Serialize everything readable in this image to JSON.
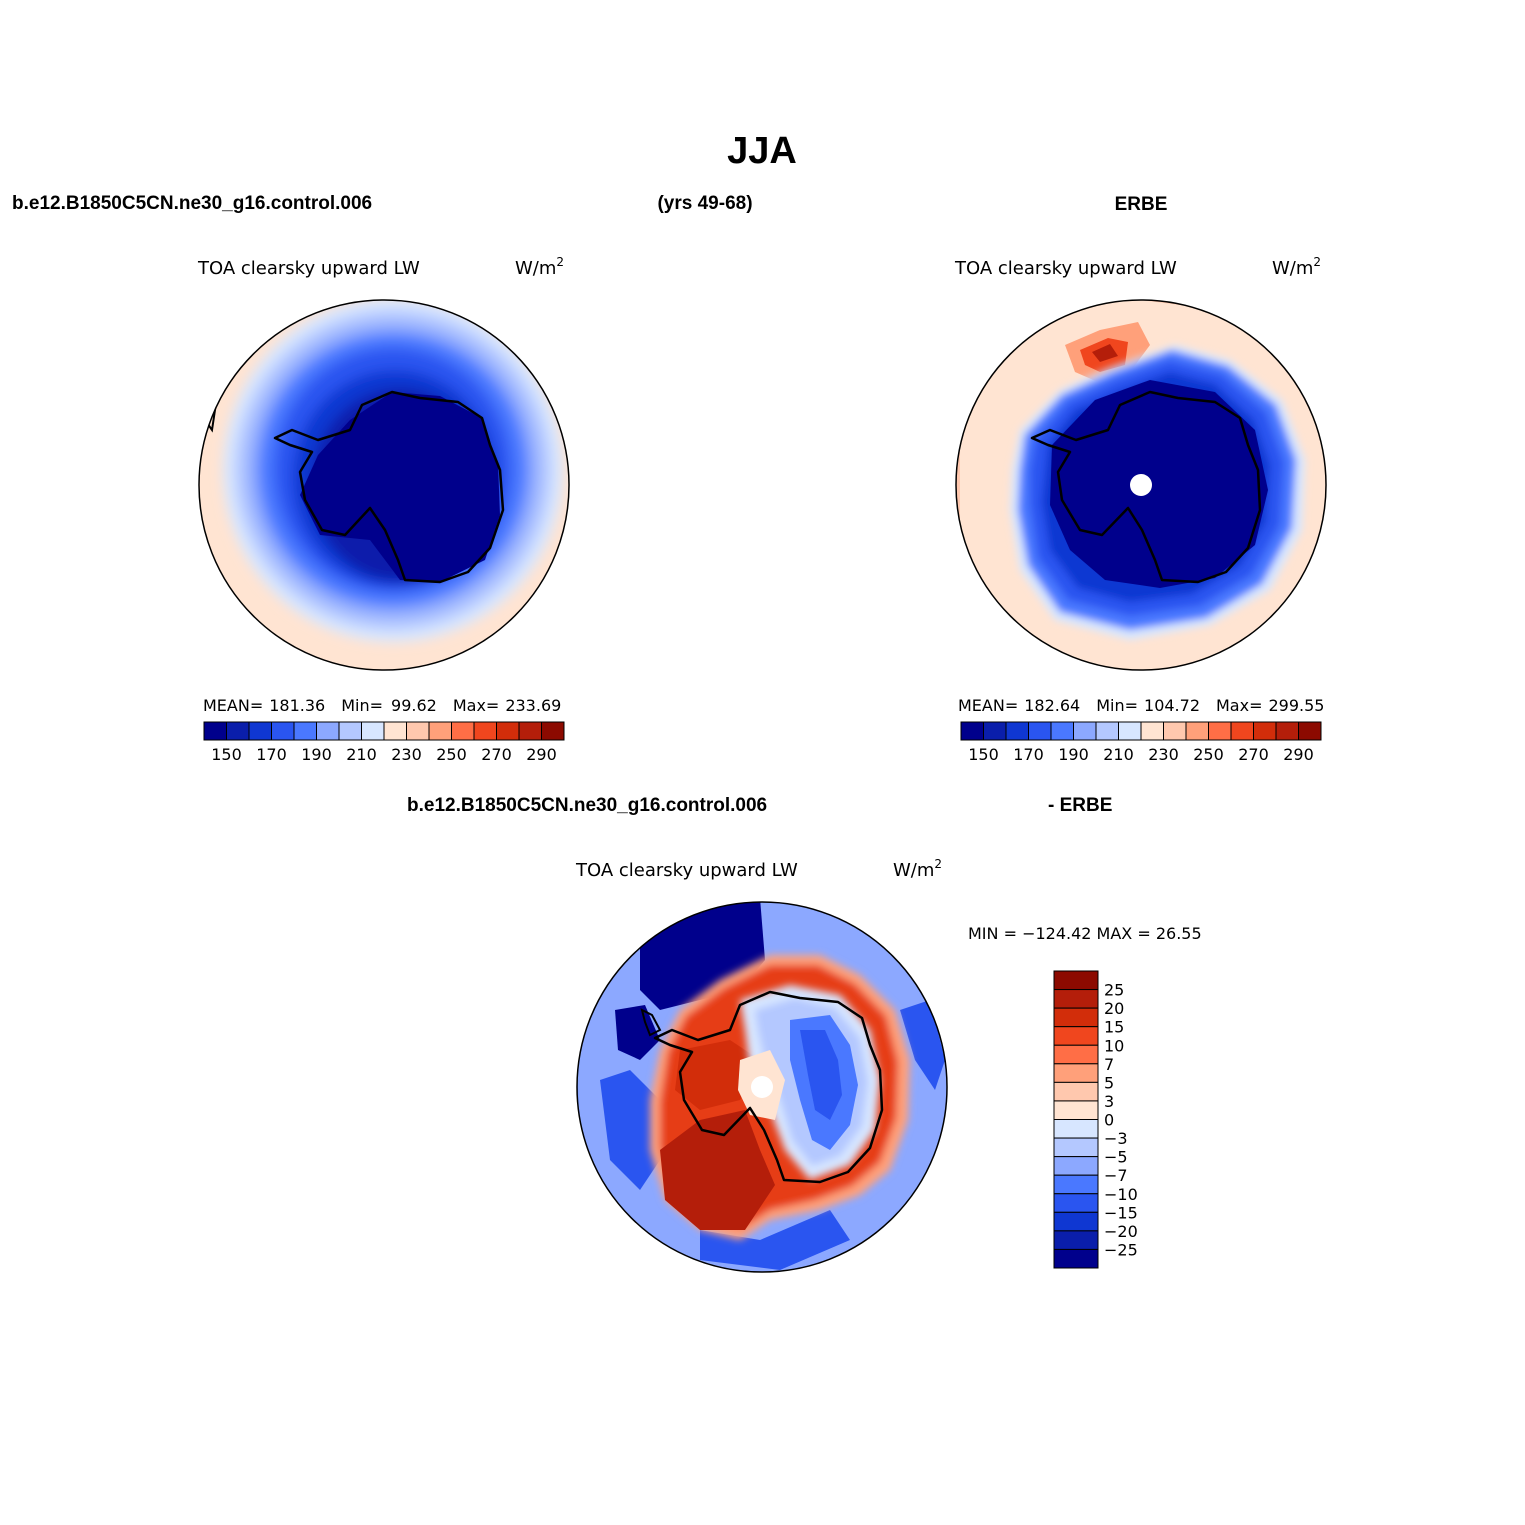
{
  "figure": {
    "title": "JJA",
    "model_case": "b.e12.B1850C5CN.ne30_g16.control.006",
    "years": "(yrs 49-68)",
    "obs_name": "ERBE",
    "diff_model": "b.e12.B1850C5CN.ne30_g16.control.006",
    "diff_obs": "- ERBE"
  },
  "panels": {
    "model": {
      "variable": "TOA clearsky upward LW",
      "units_base": "W/m",
      "units_sup": "2",
      "stats": {
        "mean_label": "MEAN=",
        "mean": "181.36",
        "min_label": "Min=",
        "min": "99.62",
        "max_label": "Max=",
        "max": "233.69"
      }
    },
    "obs": {
      "variable": "TOA clearsky upward LW",
      "units_base": "W/m",
      "units_sup": "2",
      "stats": {
        "mean_label": "MEAN=",
        "mean": "182.64",
        "min_label": "Min=",
        "min": "104.72",
        "max_label": "Max=",
        "max": "299.55"
      }
    },
    "diff": {
      "variable": "TOA clearsky upward LW",
      "units_base": "W/m",
      "units_sup": "2",
      "minmax": "MIN = −124.42 MAX =  26.55"
    }
  },
  "colorbars": {
    "abs": {
      "colors": [
        "#00008c",
        "#0a1eab",
        "#0f37d2",
        "#2a55f0",
        "#4a78ff",
        "#8ca8ff",
        "#b4c8ff",
        "#d7e6ff",
        "#ffe4d2",
        "#ffc8ae",
        "#ffa07a",
        "#ff6e46",
        "#f0461e",
        "#d22d0a",
        "#b41e0a",
        "#8c0a00"
      ],
      "labels": [
        "150",
        "170",
        "190",
        "210",
        "230",
        "250",
        "270",
        "290"
      ]
    },
    "diff": {
      "colors": [
        "#8c0a00",
        "#b41e0a",
        "#d22d0a",
        "#f0461e",
        "#ff6e46",
        "#ffa07a",
        "#ffc8ae",
        "#ffe4d2",
        "#d7e6ff",
        "#b4c8ff",
        "#8ca8ff",
        "#4a78ff",
        "#2a55f0",
        "#0f37d2",
        "#0a1eab",
        "#00008c"
      ],
      "labels": [
        "25",
        "20",
        "15",
        "10",
        "7",
        "5",
        "3",
        "0",
        "−3",
        "−5",
        "−7",
        "−10",
        "−15",
        "−20",
        "−25"
      ]
    }
  },
  "colors": {
    "ocean_warm": "#ffe4d2",
    "ice_deep": "#00008c",
    "diff_red": "#e63c14",
    "diff_blue": "#4a78ff"
  }
}
